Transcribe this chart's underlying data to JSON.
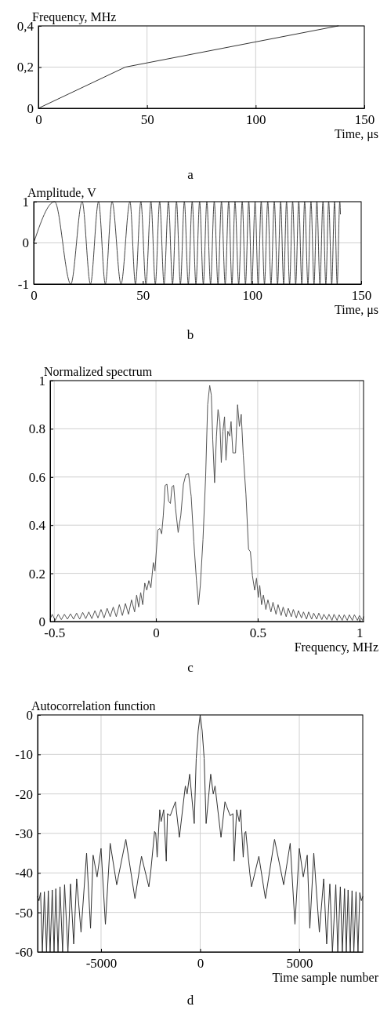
{
  "chart_data": [
    {
      "type": "line",
      "ylabel": "Frequency, MHz",
      "xlabel": "Time, μs",
      "annotations": [
        "a"
      ],
      "xlim": [
        0,
        150
      ],
      "ylim": [
        0,
        0.4
      ],
      "xticks": [
        0,
        50,
        100,
        150
      ],
      "yticks": [
        0,
        {
          "value": 0.2,
          "label": "0,2"
        },
        {
          "value": 0.4,
          "label": "0,4"
        }
      ],
      "grid": true,
      "x": [
        0,
        40,
        138
      ],
      "series": [
        {
          "color": "#333333",
          "values": [
            0,
            0.2,
            0.4
          ]
        }
      ]
    },
    {
      "type": "line",
      "ylabel": "Amplitude, V",
      "xlabel": "Time, μs",
      "annotations": [
        "b"
      ],
      "xlim": [
        0,
        150
      ],
      "ylim": [
        -1,
        1
      ],
      "xticks": [
        0,
        50,
        100,
        150
      ],
      "yticks": [
        -1,
        0,
        1
      ],
      "grid": "y",
      "x": [
        0,
        9.6,
        17.0,
        22.2,
        26.0,
        29.7,
        32.8,
        35.9,
        40.0,
        44.1,
        46.6,
        49.1,
        51.4,
        53.7,
        55.7,
        57.7,
        59.7,
        61.7,
        63.6,
        65.4,
        67.2,
        69.0,
        70.8,
        72.6,
        74.3,
        76.0,
        77.7,
        79.3,
        81.0,
        82.7,
        84.4,
        86.0,
        87.7,
        89.3,
        90.8,
        92.2,
        93.9,
        95.5,
        97.0,
        98.5,
        99.9,
        101.4,
        102.8,
        104.2,
        105.7,
        107.2,
        108.7,
        110.2,
        111.7,
        113.1,
        114.5,
        115.8,
        117.2,
        118.6,
        120.0,
        121.4,
        122.8,
        124.1,
        125.6,
        127.0,
        128.4,
        129.7,
        131.1,
        132.5,
        133.8,
        135.1,
        136.5,
        137.8,
        139.0,
        140.2,
        140.5
      ],
      "series": [
        {
          "color": "#444444",
          "values": [
            0,
            1,
            -1,
            1,
            -1,
            1,
            -1,
            1,
            -1,
            1,
            -1,
            1,
            -1,
            1,
            -1,
            1,
            -1,
            1,
            -1,
            1,
            -1,
            1,
            -1,
            1,
            -1,
            1,
            -1,
            1,
            -1,
            1,
            -1,
            1,
            -1,
            1,
            -1,
            1,
            -1,
            1,
            -1,
            1,
            -1,
            1,
            -1,
            1,
            -1,
            1,
            -1,
            1,
            -1,
            1,
            -1,
            1,
            -1,
            1,
            -1,
            1,
            -1,
            1,
            -1,
            1,
            -1,
            1,
            -1,
            1,
            -1,
            1,
            -1,
            1,
            -1,
            1,
            0.7
          ]
        }
      ]
    },
    {
      "type": "line",
      "ylabel": "Normalized spectrum",
      "xlabel": "Frequency, MHz",
      "annotations": [
        "c"
      ],
      "xlim": [
        -0.52,
        1.02
      ],
      "ylim": [
        0,
        1
      ],
      "xticks": [
        -0.5,
        0,
        0.5,
        1
      ],
      "yticks": [
        0,
        0.2,
        0.4,
        0.6,
        0.8,
        1
      ],
      "grid": true,
      "x": [
        -0.52,
        -0.51,
        -0.495,
        -0.48,
        -0.465,
        -0.45,
        -0.435,
        -0.42,
        -0.405,
        -0.39,
        -0.375,
        -0.36,
        -0.345,
        -0.33,
        -0.315,
        -0.3,
        -0.285,
        -0.27,
        -0.255,
        -0.24,
        -0.225,
        -0.21,
        -0.195,
        -0.18,
        -0.165,
        -0.15,
        -0.135,
        -0.12,
        -0.105,
        -0.095,
        -0.085,
        -0.075,
        -0.065,
        -0.055,
        -0.045,
        -0.035,
        -0.025,
        -0.013,
        -0.005,
        0.009,
        0.019,
        0.028,
        0.036,
        0.045,
        0.054,
        0.062,
        0.071,
        0.079,
        0.087,
        0.096,
        0.109,
        0.122,
        0.135,
        0.147,
        0.16,
        0.173,
        0.186,
        0.199,
        0.209,
        0.218,
        0.231,
        0.244,
        0.254,
        0.264,
        0.272,
        0.279,
        0.288,
        0.297,
        0.305,
        0.314,
        0.321,
        0.329,
        0.337,
        0.344,
        0.353,
        0.362,
        0.369,
        0.378,
        0.391,
        0.401,
        0.41,
        0.419,
        0.429,
        0.442,
        0.455,
        0.464,
        0.474,
        0.485,
        0.494,
        0.503,
        0.51,
        0.519,
        0.528,
        0.54,
        0.55,
        0.565,
        0.575,
        0.59,
        0.6,
        0.615,
        0.625,
        0.64,
        0.65,
        0.665,
        0.675,
        0.69,
        0.7,
        0.715,
        0.725,
        0.74,
        0.75,
        0.765,
        0.775,
        0.79,
        0.8,
        0.815,
        0.825,
        0.84,
        0.85,
        0.865,
        0.875,
        0.89,
        0.9,
        0.915,
        0.925,
        0.94,
        0.95,
        0.965,
        0.975,
        0.99,
        1.0,
        1.015,
        1.02
      ],
      "series": [
        {
          "color": "#555555",
          "values": [
            0.01,
            0.03,
            0.005,
            0.03,
            0.008,
            0.03,
            0.01,
            0.032,
            0.01,
            0.035,
            0.01,
            0.038,
            0.012,
            0.04,
            0.012,
            0.045,
            0.015,
            0.05,
            0.015,
            0.055,
            0.02,
            0.06,
            0.02,
            0.07,
            0.025,
            0.075,
            0.03,
            0.09,
            0.04,
            0.11,
            0.06,
            0.12,
            0.07,
            0.16,
            0.13,
            0.17,
            0.14,
            0.245,
            0.21,
            0.38,
            0.386,
            0.364,
            0.44,
            0.565,
            0.57,
            0.5,
            0.49,
            0.56,
            0.565,
            0.47,
            0.37,
            0.44,
            0.57,
            0.61,
            0.614,
            0.52,
            0.33,
            0.17,
            0.07,
            0.15,
            0.34,
            0.6,
            0.9,
            0.98,
            0.94,
            0.755,
            0.576,
            0.766,
            0.88,
            0.83,
            0.66,
            0.79,
            0.85,
            0.67,
            0.79,
            0.77,
            0.83,
            0.7,
            0.7,
            0.9,
            0.81,
            0.86,
            0.69,
            0.53,
            0.3,
            0.29,
            0.19,
            0.13,
            0.18,
            0.1,
            0.15,
            0.07,
            0.11,
            0.05,
            0.09,
            0.04,
            0.08,
            0.03,
            0.07,
            0.025,
            0.06,
            0.02,
            0.055,
            0.02,
            0.05,
            0.015,
            0.045,
            0.015,
            0.04,
            0.01,
            0.04,
            0.01,
            0.035,
            0.01,
            0.035,
            0.008,
            0.03,
            0.008,
            0.03,
            0.005,
            0.03,
            0.005,
            0.028,
            0.005,
            0.028,
            0.005,
            0.028,
            0.005,
            0.028,
            0.005,
            0.025,
            0.005,
            0.02
          ]
        }
      ]
    },
    {
      "type": "line",
      "ylabel": "Autocorrelation function",
      "xlabel": "Time sample number",
      "annotations": [
        "d"
      ],
      "xlim": [
        -8200,
        8200
      ],
      "ylim": [
        -60,
        0
      ],
      "xticks": [
        -5000,
        0,
        5000
      ],
      "yticks": [
        -60,
        -50,
        -40,
        -30,
        -20,
        -10,
        0
      ],
      "grid": true,
      "x": [
        -8200,
        -8130,
        -8050,
        -7960,
        -7860,
        -7750,
        -7660,
        -7570,
        -7460,
        -7370,
        -7280,
        -7170,
        -7070,
        -6940,
        -6840,
        -6670,
        -6540,
        -6380,
        -6230,
        -6010,
        -5730,
        -5530,
        -5400,
        -5200,
        -5000,
        -4780,
        -4540,
        -4210,
        -3750,
        -3290,
        -2960,
        -2590,
        -2500,
        -2300,
        -2240,
        -2170,
        -2040,
        -1970,
        -1840,
        -1710,
        -1650,
        -1510,
        -1250,
        -1050,
        -750,
        -660,
        -530,
        -300,
        -200,
        -100,
        0,
        100,
        200,
        300,
        530,
        660,
        750,
        1050,
        1250,
        1510,
        1650,
        1710,
        1840,
        1970,
        2040,
        2170,
        2240,
        2300,
        2500,
        2590,
        2960,
        3290,
        3750,
        4210,
        4540,
        4780,
        5000,
        5200,
        5400,
        5530,
        5730,
        6010,
        6230,
        6380,
        6540,
        6670,
        6840,
        6940,
        7070,
        7170,
        7280,
        7370,
        7460,
        7570,
        7660,
        7750,
        7860,
        7960,
        8050,
        8130,
        8200
      ],
      "series": [
        {
          "color": "#333333",
          "values": [
            -46,
            -47,
            -45,
            -60,
            -44.8,
            -60,
            -44.5,
            -60,
            -44.3,
            -60,
            -44,
            -60,
            -43.5,
            -60,
            -43,
            -60,
            -42.8,
            -58,
            -41.5,
            -55,
            -35,
            -54,
            -35.5,
            -41,
            -33.8,
            -53,
            -32.5,
            -43,
            -31.5,
            -46.5,
            -35.8,
            -43.5,
            -40,
            -29.5,
            -30,
            -36,
            -24,
            -27,
            -24,
            -37,
            -25,
            -25.5,
            -22,
            -31,
            -18,
            -20,
            -15,
            -27.5,
            -11,
            -4,
            0,
            -4,
            -11,
            -27.5,
            -15,
            -20,
            -18,
            -31,
            -22,
            -25.5,
            -25,
            -37,
            -24,
            -27,
            -24,
            -36,
            -30,
            -29.5,
            -40,
            -43.5,
            -35.8,
            -46.5,
            -31.5,
            -43,
            -32.5,
            -53,
            -33.8,
            -41,
            -35.5,
            -54,
            -35,
            -55,
            -41.5,
            -58,
            -42.8,
            -60,
            -43,
            -60,
            -43.5,
            -60,
            -44,
            -60,
            -44.3,
            -60,
            -44.5,
            -60,
            -44.8,
            -60,
            -45,
            -47,
            -46
          ]
        }
      ]
    }
  ]
}
